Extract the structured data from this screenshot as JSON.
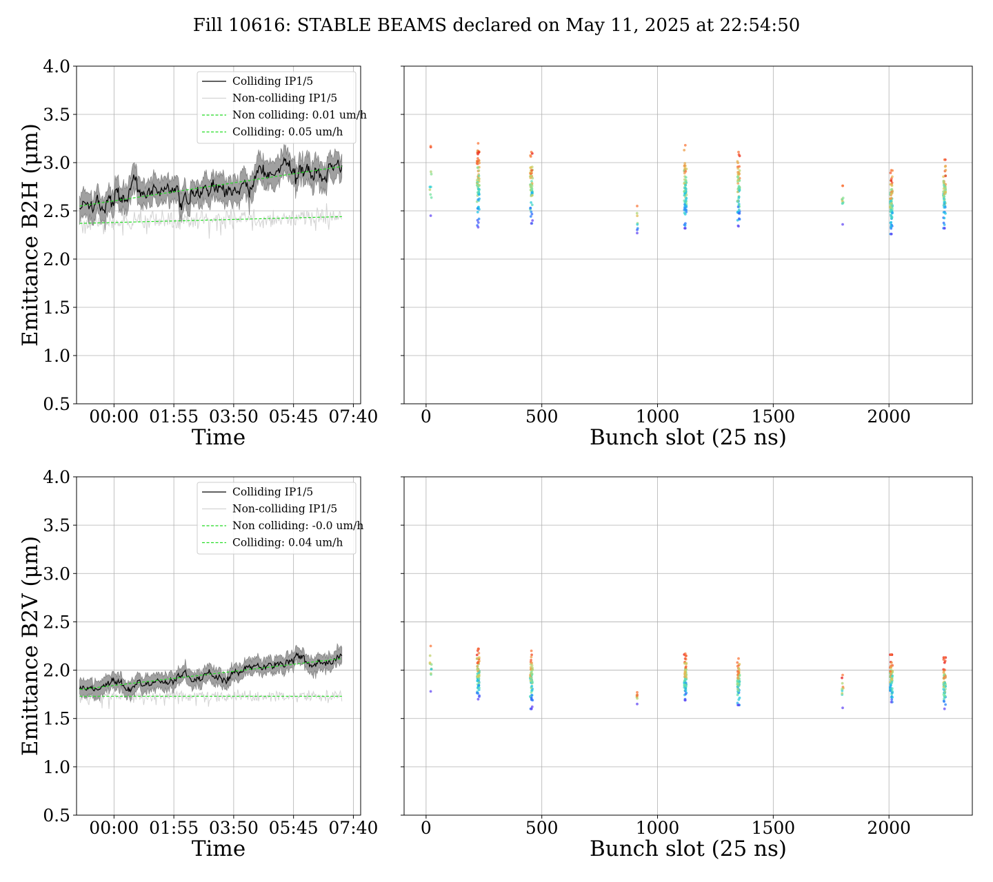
{
  "figure": {
    "title": "Fill 10616: STABLE BEAMS declared on May 11, 2025 at 22:54:50"
  },
  "colors": {
    "colliding": "#000000",
    "non_colliding": "#d3d3d3",
    "band": "#a0a0a0",
    "fit": "#22dd22",
    "grid": "#b0b0b0"
  },
  "chart_data": [
    {
      "type": "line",
      "panel": "top-left",
      "xlabel": "Time",
      "ylabel": "Emittance B2H (μm)",
      "ylim": [
        0.5,
        4.0
      ],
      "xlim_hours": [
        -1.2,
        7.9
      ],
      "x_tick_labels": [
        "00:00",
        "01:55",
        "03:50",
        "05:45",
        "07:40"
      ],
      "x_tick_hours": [
        0,
        1.9167,
        3.8333,
        5.75,
        7.6667
      ],
      "y_ticks": [
        "0.5",
        "1.0",
        "1.5",
        "2.0",
        "2.5",
        "3.0",
        "3.5",
        "4.0"
      ],
      "grid": true,
      "legend_position": "top-right",
      "x_start_hours": -1.1,
      "x_end_hours": 7.3,
      "series": [
        {
          "name": "Colliding IP1/5",
          "kind": "colliding",
          "start": 2.55,
          "end": 2.95,
          "noise": 0.07,
          "band": 0.13
        },
        {
          "name": "Non-colliding IP1/5",
          "kind": "non_colliding",
          "start": 2.37,
          "end": 2.44,
          "noise": 0.08
        },
        {
          "name": "Non colliding: 0.01 um/h",
          "kind": "fit",
          "start": 2.37,
          "end": 2.44
        },
        {
          "name": "Colliding: 0.05 um/h",
          "kind": "fit",
          "start": 2.55,
          "end": 2.96
        }
      ]
    },
    {
      "type": "scatter",
      "panel": "top-right",
      "xlabel": "Bunch slot (25 ns)",
      "ylabel": "",
      "ylim": [
        0.5,
        4.0
      ],
      "xlim": [
        -95,
        2360
      ],
      "x_ticks": [
        "0",
        "500",
        "1000",
        "1500",
        "2000"
      ],
      "grid": true,
      "groups": [
        {
          "x": 20,
          "spread": 8,
          "ymin": 2.45,
          "ymax": 3.17,
          "count": 8
        },
        {
          "x": 225,
          "spread": 10,
          "ymin": 2.33,
          "ymax": 3.2,
          "count": 70
        },
        {
          "x": 455,
          "spread": 10,
          "ymin": 2.37,
          "ymax": 3.11,
          "count": 60
        },
        {
          "x": 912,
          "spread": 5,
          "ymin": 2.27,
          "ymax": 2.55,
          "count": 6
        },
        {
          "x": 1120,
          "spread": 10,
          "ymin": 2.32,
          "ymax": 3.18,
          "count": 70
        },
        {
          "x": 1350,
          "spread": 10,
          "ymin": 2.34,
          "ymax": 3.11,
          "count": 60
        },
        {
          "x": 1800,
          "spread": 6,
          "ymin": 2.36,
          "ymax": 2.76,
          "count": 8
        },
        {
          "x": 2010,
          "spread": 10,
          "ymin": 2.26,
          "ymax": 2.92,
          "count": 70
        },
        {
          "x": 2240,
          "spread": 10,
          "ymin": 2.32,
          "ymax": 3.03,
          "count": 60
        }
      ]
    },
    {
      "type": "line",
      "panel": "bottom-left",
      "xlabel": "Time",
      "ylabel": "Emittance B2V (μm)",
      "ylim": [
        0.5,
        4.0
      ],
      "xlim_hours": [
        -1.2,
        7.9
      ],
      "x_tick_labels": [
        "00:00",
        "01:55",
        "03:50",
        "05:45",
        "07:40"
      ],
      "x_tick_hours": [
        0,
        1.9167,
        3.8333,
        5.75,
        7.6667
      ],
      "y_ticks": [
        "0.5",
        "1.0",
        "1.5",
        "2.0",
        "2.5",
        "3.0",
        "3.5",
        "4.0"
      ],
      "grid": true,
      "legend_position": "top-right",
      "x_start_hours": -1.1,
      "x_end_hours": 7.3,
      "series": [
        {
          "name": "Colliding IP1/5",
          "kind": "colliding",
          "start": 1.79,
          "end": 2.12,
          "noise": 0.035,
          "band": 0.08
        },
        {
          "name": "Non-colliding IP1/5",
          "kind": "non_colliding",
          "start": 1.73,
          "end": 1.73,
          "noise": 0.05
        },
        {
          "name": "Non colliding: -0.0 um/h",
          "kind": "fit",
          "start": 1.73,
          "end": 1.73
        },
        {
          "name": "Colliding: 0.04 um/h",
          "kind": "fit",
          "start": 1.8,
          "end": 2.12
        }
      ]
    },
    {
      "type": "scatter",
      "panel": "bottom-right",
      "xlabel": "Bunch slot (25 ns)",
      "ylabel": "",
      "ylim": [
        0.5,
        4.0
      ],
      "xlim": [
        -95,
        2360
      ],
      "x_ticks": [
        "0",
        "500",
        "1000",
        "1500",
        "2000"
      ],
      "grid": true,
      "groups": [
        {
          "x": 20,
          "spread": 8,
          "ymin": 1.78,
          "ymax": 2.25,
          "count": 8
        },
        {
          "x": 225,
          "spread": 10,
          "ymin": 1.7,
          "ymax": 2.22,
          "count": 70
        },
        {
          "x": 455,
          "spread": 10,
          "ymin": 1.6,
          "ymax": 2.2,
          "count": 60
        },
        {
          "x": 912,
          "spread": 5,
          "ymin": 1.65,
          "ymax": 1.77,
          "count": 6
        },
        {
          "x": 1120,
          "spread": 10,
          "ymin": 1.69,
          "ymax": 2.17,
          "count": 70
        },
        {
          "x": 1350,
          "spread": 10,
          "ymin": 1.64,
          "ymax": 2.12,
          "count": 60
        },
        {
          "x": 1800,
          "spread": 6,
          "ymin": 1.61,
          "ymax": 1.95,
          "count": 8
        },
        {
          "x": 2010,
          "spread": 10,
          "ymin": 1.67,
          "ymax": 2.16,
          "count": 70
        },
        {
          "x": 2240,
          "spread": 10,
          "ymin": 1.6,
          "ymax": 2.13,
          "count": 60
        }
      ]
    }
  ]
}
